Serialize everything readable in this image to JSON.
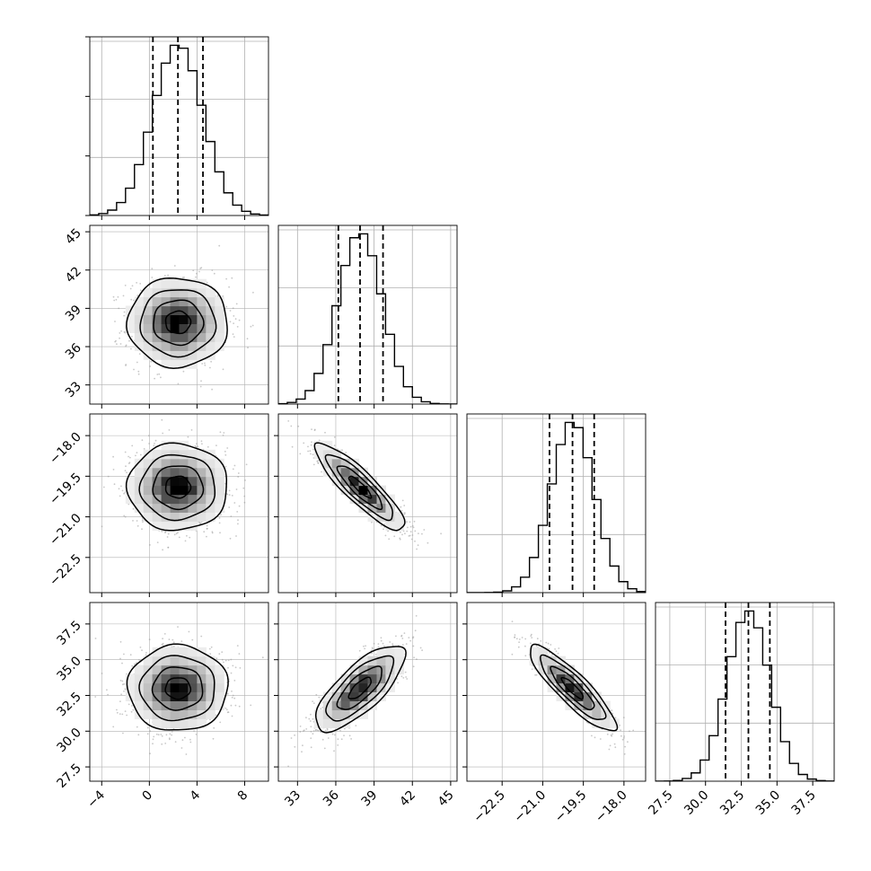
{
  "chart_data": {
    "type": "corner",
    "title": "",
    "parameter_labels": [
      "",
      "",
      "",
      ""
    ],
    "grid": true,
    "colors": {
      "line": "#000000",
      "grid": "#b0b0b0",
      "scatter": "#9a9a9a"
    },
    "parameters": [
      {
        "index": 0,
        "range": [
          -5,
          10
        ],
        "ticks": [
          -4,
          0,
          4,
          8
        ],
        "tick_labels": [
          "−4",
          "0",
          "4",
          "8"
        ],
        "mean": 2.4,
        "std": 2.1,
        "quantiles": [
          0.3,
          2.4,
          4.5
        ]
      },
      {
        "index": 1,
        "range": [
          31.5,
          45.5
        ],
        "ticks": [
          33,
          36,
          39,
          42,
          45
        ],
        "tick_labels": [
          "33",
          "36",
          "39",
          "42",
          "45"
        ],
        "mean": 37.9,
        "std": 1.75,
        "quantiles": [
          36.2,
          37.9,
          39.7
        ]
      },
      {
        "index": 2,
        "range": [
          -23.8,
          -17.2
        ],
        "ticks": [
          -22.5,
          -21.0,
          -19.5,
          -18.0
        ],
        "tick_labels": [
          "−22.5",
          "−21.0",
          "−19.5",
          "−18.0"
        ],
        "mean": -19.9,
        "std": 0.8,
        "quantiles": [
          -20.75,
          -19.9,
          -19.1
        ]
      },
      {
        "index": 3,
        "range": [
          26.5,
          39.0
        ],
        "ticks": [
          27.5,
          30.0,
          32.5,
          35.0,
          37.5
        ],
        "tick_labels": [
          "27.5",
          "30.0",
          "32.5",
          "35.0",
          "37.5"
        ],
        "mean": 33.0,
        "std": 1.5,
        "quantiles": [
          31.4,
          33.0,
          34.5
        ]
      }
    ],
    "correlations": [
      {
        "pair": [
          0,
          1
        ],
        "rho": 0.0
      },
      {
        "pair": [
          0,
          2
        ],
        "rho": 0.0
      },
      {
        "pair": [
          0,
          3
        ],
        "rho": 0.0
      },
      {
        "pair": [
          1,
          2
        ],
        "rho": -0.88
      },
      {
        "pair": [
          1,
          3
        ],
        "rho": 0.75
      },
      {
        "pair": [
          2,
          3
        ],
        "rho": -0.88
      }
    ],
    "contour_levels": [
      0.5,
      1.0,
      1.5,
      2.0
    ]
  }
}
